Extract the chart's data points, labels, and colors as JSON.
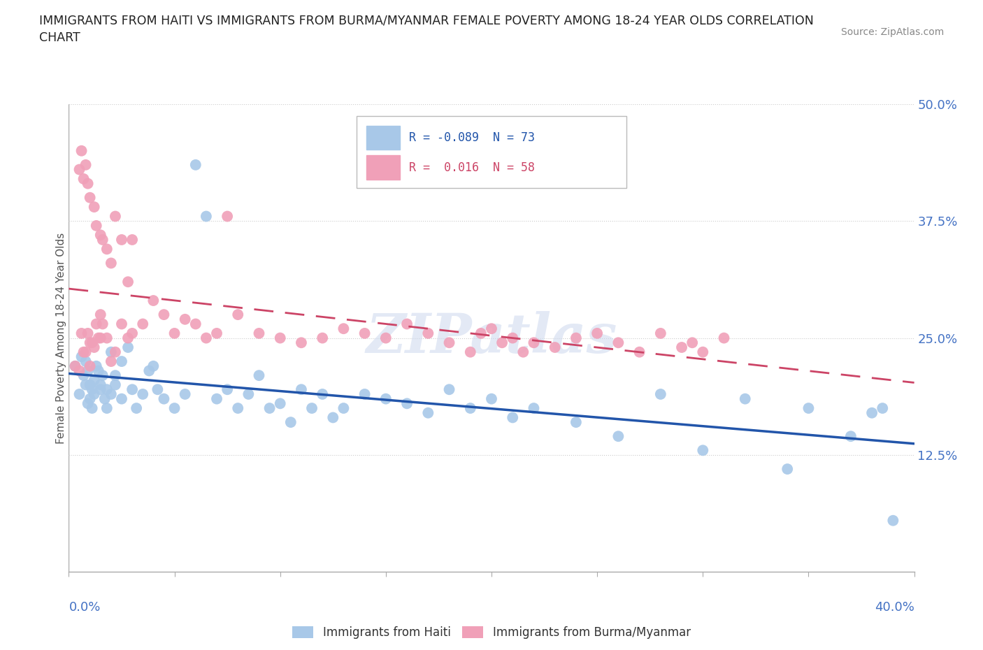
{
  "title_line1": "IMMIGRANTS FROM HAITI VS IMMIGRANTS FROM BURMA/MYANMAR FEMALE POVERTY AMONG 18-24 YEAR OLDS CORRELATION",
  "title_line2": "CHART",
  "source_text": "Source: ZipAtlas.com",
  "ylabel": "Female Poverty Among 18-24 Year Olds",
  "x_min": 0.0,
  "x_max": 0.4,
  "y_min": 0.0,
  "y_max": 0.5,
  "haiti_color": "#a8c8e8",
  "haiti_line_color": "#2255aa",
  "burma_color": "#f0a0b8",
  "burma_line_color": "#cc4466",
  "haiti_R": -0.089,
  "haiti_N": 73,
  "burma_R": 0.016,
  "burma_N": 58,
  "watermark": "ZIPatlas",
  "haiti_x": [
    0.003,
    0.005,
    0.006,
    0.007,
    0.008,
    0.008,
    0.009,
    0.009,
    0.01,
    0.01,
    0.011,
    0.011,
    0.012,
    0.012,
    0.013,
    0.014,
    0.015,
    0.015,
    0.016,
    0.017,
    0.018,
    0.018,
    0.02,
    0.02,
    0.022,
    0.022,
    0.025,
    0.025,
    0.028,
    0.03,
    0.032,
    0.035,
    0.038,
    0.04,
    0.042,
    0.045,
    0.05,
    0.055,
    0.06,
    0.065,
    0.07,
    0.075,
    0.08,
    0.085,
    0.09,
    0.095,
    0.1,
    0.105,
    0.11,
    0.115,
    0.12,
    0.125,
    0.13,
    0.14,
    0.15,
    0.16,
    0.17,
    0.18,
    0.19,
    0.2,
    0.21,
    0.22,
    0.24,
    0.26,
    0.28,
    0.3,
    0.32,
    0.34,
    0.35,
    0.37,
    0.38,
    0.385,
    0.39
  ],
  "haiti_y": [
    0.22,
    0.19,
    0.23,
    0.21,
    0.2,
    0.225,
    0.18,
    0.215,
    0.2,
    0.185,
    0.175,
    0.195,
    0.205,
    0.19,
    0.22,
    0.215,
    0.2,
    0.195,
    0.21,
    0.185,
    0.195,
    0.175,
    0.235,
    0.19,
    0.21,
    0.2,
    0.225,
    0.185,
    0.24,
    0.195,
    0.175,
    0.19,
    0.215,
    0.22,
    0.195,
    0.185,
    0.175,
    0.19,
    0.435,
    0.38,
    0.185,
    0.195,
    0.175,
    0.19,
    0.21,
    0.175,
    0.18,
    0.16,
    0.195,
    0.175,
    0.19,
    0.165,
    0.175,
    0.19,
    0.185,
    0.18,
    0.17,
    0.195,
    0.175,
    0.185,
    0.165,
    0.175,
    0.16,
    0.145,
    0.19,
    0.13,
    0.185,
    0.11,
    0.175,
    0.145,
    0.17,
    0.175,
    0.055
  ],
  "burma_x": [
    0.003,
    0.005,
    0.006,
    0.007,
    0.008,
    0.009,
    0.01,
    0.01,
    0.011,
    0.012,
    0.013,
    0.014,
    0.015,
    0.015,
    0.016,
    0.018,
    0.02,
    0.022,
    0.025,
    0.028,
    0.03,
    0.035,
    0.04,
    0.045,
    0.05,
    0.055,
    0.06,
    0.065,
    0.07,
    0.075,
    0.08,
    0.09,
    0.1,
    0.11,
    0.12,
    0.13,
    0.14,
    0.15,
    0.16,
    0.17,
    0.18,
    0.19,
    0.195,
    0.2,
    0.205,
    0.21,
    0.215,
    0.22,
    0.23,
    0.24,
    0.25,
    0.26,
    0.27,
    0.28,
    0.29,
    0.295,
    0.3,
    0.31
  ],
  "burma_y": [
    0.22,
    0.215,
    0.255,
    0.235,
    0.235,
    0.255,
    0.245,
    0.22,
    0.245,
    0.24,
    0.265,
    0.25,
    0.275,
    0.25,
    0.265,
    0.25,
    0.225,
    0.235,
    0.265,
    0.25,
    0.255,
    0.265,
    0.29,
    0.275,
    0.255,
    0.27,
    0.265,
    0.25,
    0.255,
    0.38,
    0.275,
    0.255,
    0.25,
    0.245,
    0.25,
    0.26,
    0.255,
    0.25,
    0.265,
    0.255,
    0.245,
    0.235,
    0.255,
    0.26,
    0.245,
    0.25,
    0.235,
    0.245,
    0.24,
    0.25,
    0.255,
    0.245,
    0.235,
    0.255,
    0.24,
    0.245,
    0.235,
    0.25
  ],
  "burma_high_x": [
    0.005,
    0.006,
    0.007,
    0.008,
    0.009,
    0.01,
    0.012,
    0.013,
    0.015,
    0.016,
    0.018,
    0.02,
    0.022,
    0.025,
    0.028,
    0.03
  ],
  "burma_high_y": [
    0.43,
    0.45,
    0.42,
    0.435,
    0.415,
    0.4,
    0.39,
    0.37,
    0.36,
    0.355,
    0.345,
    0.33,
    0.38,
    0.355,
    0.31,
    0.355
  ]
}
